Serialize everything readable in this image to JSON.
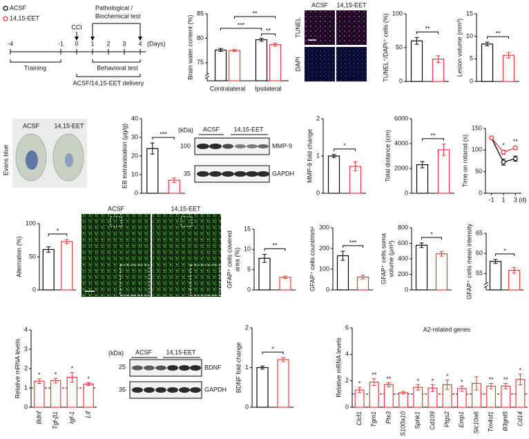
{
  "timeline": {
    "legend": [
      {
        "name": "ACSF",
        "color": "#000000"
      },
      {
        "name": "14,15-EET",
        "color": "#e8393b"
      }
    ],
    "ticks": [
      -4,
      -1,
      0,
      1,
      2,
      3,
      4
    ],
    "unit": "(Days)",
    "event": "CCI",
    "test": [
      "Pathological /",
      "Biochemical test"
    ],
    "training": "Training",
    "behavioral": "Behavioral test",
    "delivery": "ACSF/14,15-EET delivery"
  },
  "tunel_images": {
    "columns": [
      "ACSF",
      "14,15-EET"
    ],
    "rows": [
      "TUNEL",
      "DAPI"
    ]
  },
  "evans_blue_image": {
    "columns": [
      "ACSF",
      "14,15-EET"
    ],
    "label": "Evans blue"
  },
  "mmp9_blot": {
    "unit": "(kDa)",
    "columns": [
      "ACSF",
      "14,15-EET"
    ],
    "markers": [
      100,
      35
    ],
    "bands": [
      "MMP-9",
      "GAPDH"
    ]
  },
  "gfap_images": {
    "columns": [
      "ACSF",
      "14,15-EET"
    ]
  },
  "bdnf_blot": {
    "unit": "(kDa)",
    "columns": [
      "ACSF",
      "14,15-EET"
    ],
    "markers": [
      25,
      35
    ],
    "bands": [
      "BDNF",
      "GAPDH"
    ]
  },
  "chart_data": [
    {
      "type": "bar",
      "ylabel": [
        "Brain water content (%)"
      ],
      "ylim": [
        73,
        85
      ],
      "yticks": [
        75,
        80,
        85
      ],
      "axis_break": true,
      "categories": [
        "Contralateral",
        "Ipsilateral"
      ],
      "series": [
        {
          "color": "#000000",
          "values": [
            77.6,
            79.7
          ],
          "errors": [
            0.3,
            0.3
          ]
        },
        {
          "color": "#e8393b",
          "values": [
            77.5,
            78.7
          ],
          "errors": [
            0.2,
            0.3
          ]
        }
      ],
      "annotations": [
        "**",
        "***",
        "**"
      ]
    },
    {
      "type": "bar",
      "ylabel": [
        "TUNEL⁺/DAPI⁺ cells (%)"
      ],
      "ylim": [
        0,
        100
      ],
      "yticks": [
        0,
        50,
        100
      ],
      "categories": [
        null,
        null
      ],
      "colors": [
        "#000000",
        "#e8393b"
      ],
      "values": [
        60,
        33
      ],
      "errors": [
        5,
        5
      ],
      "annotations": [
        "**"
      ]
    },
    {
      "type": "bar",
      "ylabel": [
        "Lesion volume (mm³)"
      ],
      "ylim": [
        0,
        15
      ],
      "yticks": [
        0,
        5,
        10,
        15
      ],
      "categories": [
        null,
        null
      ],
      "colors": [
        "#000000",
        "#e8393b"
      ],
      "values": [
        8.3,
        5.8
      ],
      "errors": [
        0.4,
        0.6
      ],
      "annotations": [
        "**"
      ]
    },
    {
      "type": "bar",
      "ylabel": [
        "EB extravasation (µg/g)"
      ],
      "ylim": [
        0,
        40
      ],
      "yticks": [
        0,
        10,
        20,
        30,
        40
      ],
      "categories": [
        null,
        null
      ],
      "colors": [
        "#000000",
        "#e8393b"
      ],
      "values": [
        24,
        7
      ],
      "errors": [
        3,
        1.2
      ],
      "annotations": [
        "***"
      ]
    },
    {
      "type": "bar",
      "ylabel": [
        "MMP-9 fold change"
      ],
      "ylim": [
        0,
        2
      ],
      "yticks": [
        0,
        1,
        2
      ],
      "categories": [
        null,
        null
      ],
      "colors": [
        "#000000",
        "#e8393b"
      ],
      "values": [
        1.0,
        0.72
      ],
      "errors": [
        0.04,
        0.12
      ],
      "annotations": [
        "*"
      ]
    },
    {
      "type": "bar",
      "ylabel": [
        "Total distance (cm)"
      ],
      "ylim": [
        0,
        6000
      ],
      "yticks": [
        0,
        2000,
        4000,
        6000
      ],
      "categories": [
        null,
        null
      ],
      "colors": [
        "#000000",
        "#e8393b"
      ],
      "values": [
        2300,
        3500
      ],
      "errors": [
        250,
        450
      ],
      "annotations": [
        "**"
      ]
    },
    {
      "type": "line",
      "ylabel": [
        "Time on rotarod (s)"
      ],
      "ylim": [
        0,
        150
      ],
      "yticks": [
        0,
        50,
        100,
        150
      ],
      "x": [
        -1,
        1,
        3
      ],
      "xlim": [
        -2,
        4
      ],
      "xticks": [
        -1,
        1,
        3
      ],
      "xlabel": "(d)",
      "series": [
        {
          "color": "#000000",
          "values": [
            128,
            72,
            80
          ],
          "errors": [
            3,
            7,
            6
          ]
        },
        {
          "color": "#e8393b",
          "values": [
            128,
            95,
            105
          ],
          "errors": [
            3,
            5,
            4
          ]
        }
      ],
      "annotations": [
        null,
        "*",
        "**"
      ]
    },
    {
      "type": "bar",
      "ylabel": [
        "Alternation (%)"
      ],
      "ylim": [
        0,
        100
      ],
      "yticks": [
        0,
        50,
        100
      ],
      "categories": [
        null,
        null
      ],
      "colors": [
        "#000000",
        "#e8393b"
      ],
      "values": [
        61,
        73
      ],
      "errors": [
        4,
        3
      ],
      "annotations": [
        "*"
      ]
    },
    {
      "type": "bar",
      "ylabel": [
        "GFAP⁺ cells covered",
        "area (%)"
      ],
      "ylim": [
        0,
        15
      ],
      "yticks": [
        0,
        5,
        10,
        15
      ],
      "categories": [
        null,
        null
      ],
      "colors": [
        "#000000",
        "#e8393b"
      ],
      "values": [
        7.8,
        3.1
      ],
      "errors": [
        1.0,
        0.3
      ],
      "annotations": [
        "**"
      ]
    },
    {
      "type": "bar",
      "ylabel": [
        "GFAP⁺ cells count/mm²"
      ],
      "ylim": [
        0,
        300
      ],
      "yticks": [
        0,
        100,
        200,
        300
      ],
      "categories": [
        null,
        null
      ],
      "colors": [
        "#000000",
        "#e8393b"
      ],
      "values": [
        165,
        62
      ],
      "errors": [
        22,
        9
      ],
      "annotations": [
        "***"
      ]
    },
    {
      "type": "bar",
      "ylabel": [
        "GFAP⁺ cells soma",
        "volume (µm³)"
      ],
      "ylim": [
        0,
        800
      ],
      "yticks": [
        0,
        200,
        400,
        600,
        800
      ],
      "categories": [
        null,
        null
      ],
      "colors": [
        "#000000",
        "#e8393b"
      ],
      "values": [
        575,
        465
      ],
      "errors": [
        30,
        30
      ],
      "annotations": [
        "*"
      ]
    },
    {
      "type": "bar",
      "ylabel": [
        "GFAP⁺ cells mean intensity"
      ],
      "ylim": [
        53,
        65
      ],
      "yticks": [
        55,
        60,
        65
      ],
      "axis_break": true,
      "categories": [
        null,
        null
      ],
      "colors": [
        "#000000",
        "#e8393b"
      ],
      "values": [
        58.0,
        55.8
      ],
      "errors": [
        0.5,
        0.7
      ],
      "annotations": [
        "*"
      ]
    },
    {
      "type": "bar",
      "ylabel": [
        "Relative mRNA levels"
      ],
      "ylim": [
        0,
        4
      ],
      "yticks": [
        0,
        1,
        2,
        3,
        4
      ],
      "categories": [
        "Bdnf",
        "Tgf-β1",
        "Igf-1",
        "Lif"
      ],
      "color": "#e8393b",
      "values": [
        1.35,
        1.38,
        1.55,
        1.2
      ],
      "errors": [
        0.12,
        0.12,
        0.25,
        0.07
      ],
      "annotations": [
        "*",
        "*",
        "*",
        "*"
      ],
      "refline": 1
    },
    {
      "type": "bar",
      "ylabel": [
        "BDNF fold change"
      ],
      "ylim": [
        0,
        2
      ],
      "yticks": [
        0,
        1,
        2
      ],
      "categories": [
        null,
        null
      ],
      "colors": [
        "#000000",
        "#e8393b"
      ],
      "values": [
        1.0,
        1.2
      ],
      "errors": [
        0.04,
        0.05
      ],
      "annotations": [
        "*"
      ]
    },
    {
      "type": "bar",
      "title": "A2-related genes",
      "ylabel": [
        "Relative mRNA levels"
      ],
      "ylim": [
        0,
        6
      ],
      "yticks": [
        0,
        2,
        4,
        6
      ],
      "categories": [
        "Clcf1",
        "Tgm1",
        "Ptx3",
        "S100a10",
        "Sphk1",
        "Cd109",
        "Ptgs2",
        "Emp1",
        "Slc10a6",
        "Tm4sf1",
        "B3gnt5",
        "Cd14"
      ],
      "color": "#e8393b",
      "values": [
        1.3,
        1.9,
        1.7,
        1.1,
        1.5,
        1.45,
        1.7,
        1.4,
        1.8,
        1.6,
        1.6,
        2.1
      ],
      "errors": [
        0.2,
        0.25,
        0.15,
        0.1,
        0.2,
        0.25,
        0.35,
        0.2,
        0.5,
        0.2,
        0.2,
        0.4
      ],
      "annotations": [
        "*",
        "**",
        "**",
        null,
        "*",
        "*",
        "*",
        "*",
        null,
        "**",
        "**",
        "*"
      ],
      "refline": 1
    }
  ]
}
